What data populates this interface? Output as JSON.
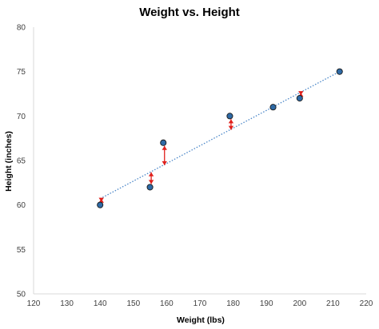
{
  "chart_data": {
    "type": "scatter",
    "title": "Weight vs. Height",
    "xlabel": "Weight (lbs)",
    "ylabel": "Height (inches)",
    "xlim": [
      120,
      220
    ],
    "ylim": [
      50,
      80
    ],
    "xticks": [
      "120",
      "130",
      "140",
      "150",
      "160",
      "170",
      "180",
      "190",
      "200",
      "210",
      "220"
    ],
    "yticks": [
      "50",
      "55",
      "60",
      "65",
      "70",
      "75",
      "80"
    ],
    "points": [
      {
        "x": 140,
        "y": 60
      },
      {
        "x": 155,
        "y": 62
      },
      {
        "x": 159,
        "y": 67
      },
      {
        "x": 179,
        "y": 70
      },
      {
        "x": 192,
        "y": 71
      },
      {
        "x": 200,
        "y": 72
      },
      {
        "x": 212,
        "y": 75
      }
    ],
    "trendline": {
      "style": "dotted",
      "color": "#4a86c8",
      "x": [
        140,
        212
      ],
      "y": [
        60.7,
        75.0
      ]
    },
    "residual_arrows_color": "#e0201c",
    "point_color": "#2e6aa6",
    "grid": false
  }
}
